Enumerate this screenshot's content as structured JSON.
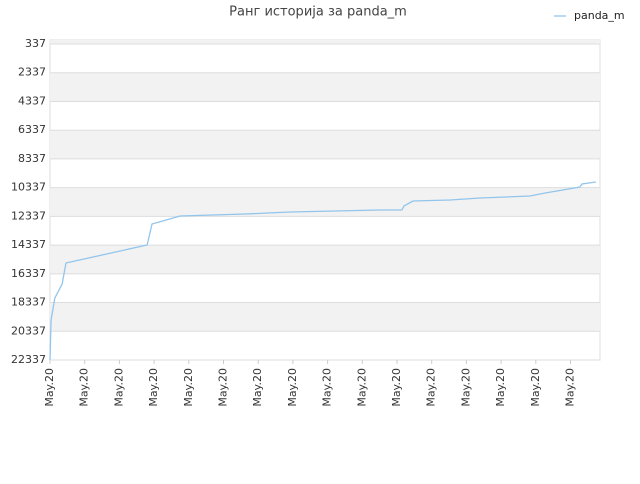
{
  "chart_data": {
    "type": "line",
    "title": "Ранг историја за panda_m",
    "x": [
      0,
      0.03,
      0.14,
      0.35,
      0.46,
      2.8,
      2.94,
      3.75,
      5.62,
      6.92,
      8.21,
      9.51,
      10.14,
      10.2,
      10.46,
      11.53,
      12.39,
      13.83,
      14.27,
      15.27,
      15.33,
      15.73
    ],
    "series": [
      {
        "name": "panda_m",
        "color": "#92c5ec",
        "values": [
          22337,
          19552,
          18021,
          17046,
          15584,
          14330,
          12869,
          12312,
          12173,
          12034,
          11964,
          11894,
          11894,
          11616,
          11267,
          11198,
          11058,
          10919,
          10710,
          10292,
          10084,
          9944
        ]
      }
    ],
    "xlim": [
      0,
      15.85
    ],
    "xticks": [
      {
        "value": 0,
        "label": "May.20"
      },
      {
        "value": 1,
        "label": "May.20"
      },
      {
        "value": 2,
        "label": "May.20"
      },
      {
        "value": 3,
        "label": "May.20"
      },
      {
        "value": 4,
        "label": "May.20"
      },
      {
        "value": 5,
        "label": "May.20"
      },
      {
        "value": 6,
        "label": "May.20"
      },
      {
        "value": 7,
        "label": "May.20"
      },
      {
        "value": 8,
        "label": "May.20"
      },
      {
        "value": 9,
        "label": "May.20"
      },
      {
        "value": 10,
        "label": "May.20"
      },
      {
        "value": 11,
        "label": "May.20"
      },
      {
        "value": 12,
        "label": "May.20"
      },
      {
        "value": 13,
        "label": "May.20"
      },
      {
        "value": 14,
        "label": "May.20"
      },
      {
        "value": 15,
        "label": "May.20"
      }
    ],
    "ylim": [
      22337,
      57
    ],
    "yticks": [
      337,
      2337,
      4337,
      6337,
      8337,
      10337,
      12337,
      14337,
      16337,
      18337,
      20337,
      22337
    ],
    "grid": true,
    "legend": "top-right"
  }
}
